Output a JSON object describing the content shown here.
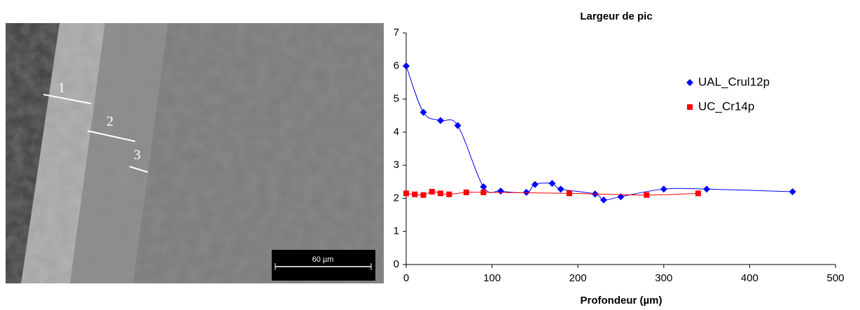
{
  "image": {
    "labels": [
      "1",
      "2",
      "3"
    ],
    "scale_bar": "60 µm"
  },
  "chart_data": {
    "type": "scatter",
    "title": "Largeur de pic",
    "x_label": "Profondeur (µm)",
    "xlim": [
      0,
      500
    ],
    "xticks": [
      0,
      100,
      200,
      300,
      400,
      500
    ],
    "ylim": [
      0,
      7
    ],
    "yticks": [
      0,
      1,
      2,
      3,
      4,
      5,
      6,
      7
    ],
    "series": [
      {
        "name": "UAL_Crul12p",
        "color": "#0000ff",
        "marker": "diamond",
        "x": [
          0,
          20,
          40,
          60,
          90,
          110,
          140,
          150,
          170,
          180,
          220,
          230,
          250,
          300,
          350,
          450
        ],
        "values": [
          6.0,
          4.6,
          4.35,
          4.2,
          2.35,
          2.22,
          2.18,
          2.42,
          2.45,
          2.28,
          2.13,
          1.95,
          2.05,
          2.28,
          2.28,
          2.2
        ]
      },
      {
        "name": "UC_Cr14p",
        "color": "#ff0000",
        "marker": "square",
        "x": [
          0,
          10,
          20,
          30,
          40,
          50,
          70,
          90,
          190,
          280,
          340
        ],
        "values": [
          2.15,
          2.12,
          2.1,
          2.2,
          2.15,
          2.12,
          2.18,
          2.18,
          2.15,
          2.1,
          2.15
        ]
      }
    ]
  }
}
